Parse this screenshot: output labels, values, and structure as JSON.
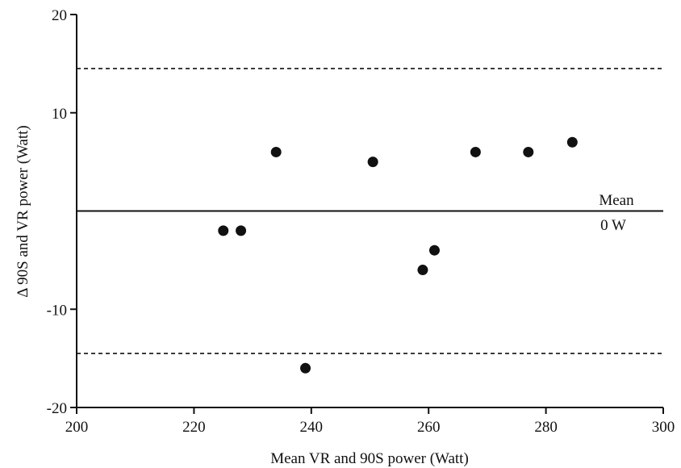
{
  "chart_data": {
    "type": "scatter",
    "title": "",
    "xlabel": "Mean VR and 90S power (Watt)",
    "ylabel": "Δ 90S and VR power (Watt)",
    "xlim": [
      200,
      300
    ],
    "ylim": [
      -20,
      20
    ],
    "xticks": [
      200,
      220,
      240,
      260,
      280,
      300
    ],
    "yticks": [
      -20,
      -10,
      10,
      20
    ],
    "grid": false,
    "points": [
      {
        "x": 225,
        "y": -2
      },
      {
        "x": 228,
        "y": -2
      },
      {
        "x": 234,
        "y": 6
      },
      {
        "x": 239,
        "y": -16
      },
      {
        "x": 250.5,
        "y": 5
      },
      {
        "x": 259,
        "y": -6
      },
      {
        "x": 261,
        "y": -4
      },
      {
        "x": 268,
        "y": 6
      },
      {
        "x": 277,
        "y": 6
      },
      {
        "x": 284.5,
        "y": 7
      }
    ],
    "reference_lines": [
      {
        "y": 0,
        "style": "solid"
      },
      {
        "y": 14.5,
        "style": "dashed"
      },
      {
        "y": -14.5,
        "style": "dashed"
      }
    ],
    "annotations": {
      "mean_label": "Mean",
      "mean_value": "0 W"
    },
    "colors": {
      "points": "#111111",
      "lines": "#111111"
    }
  }
}
